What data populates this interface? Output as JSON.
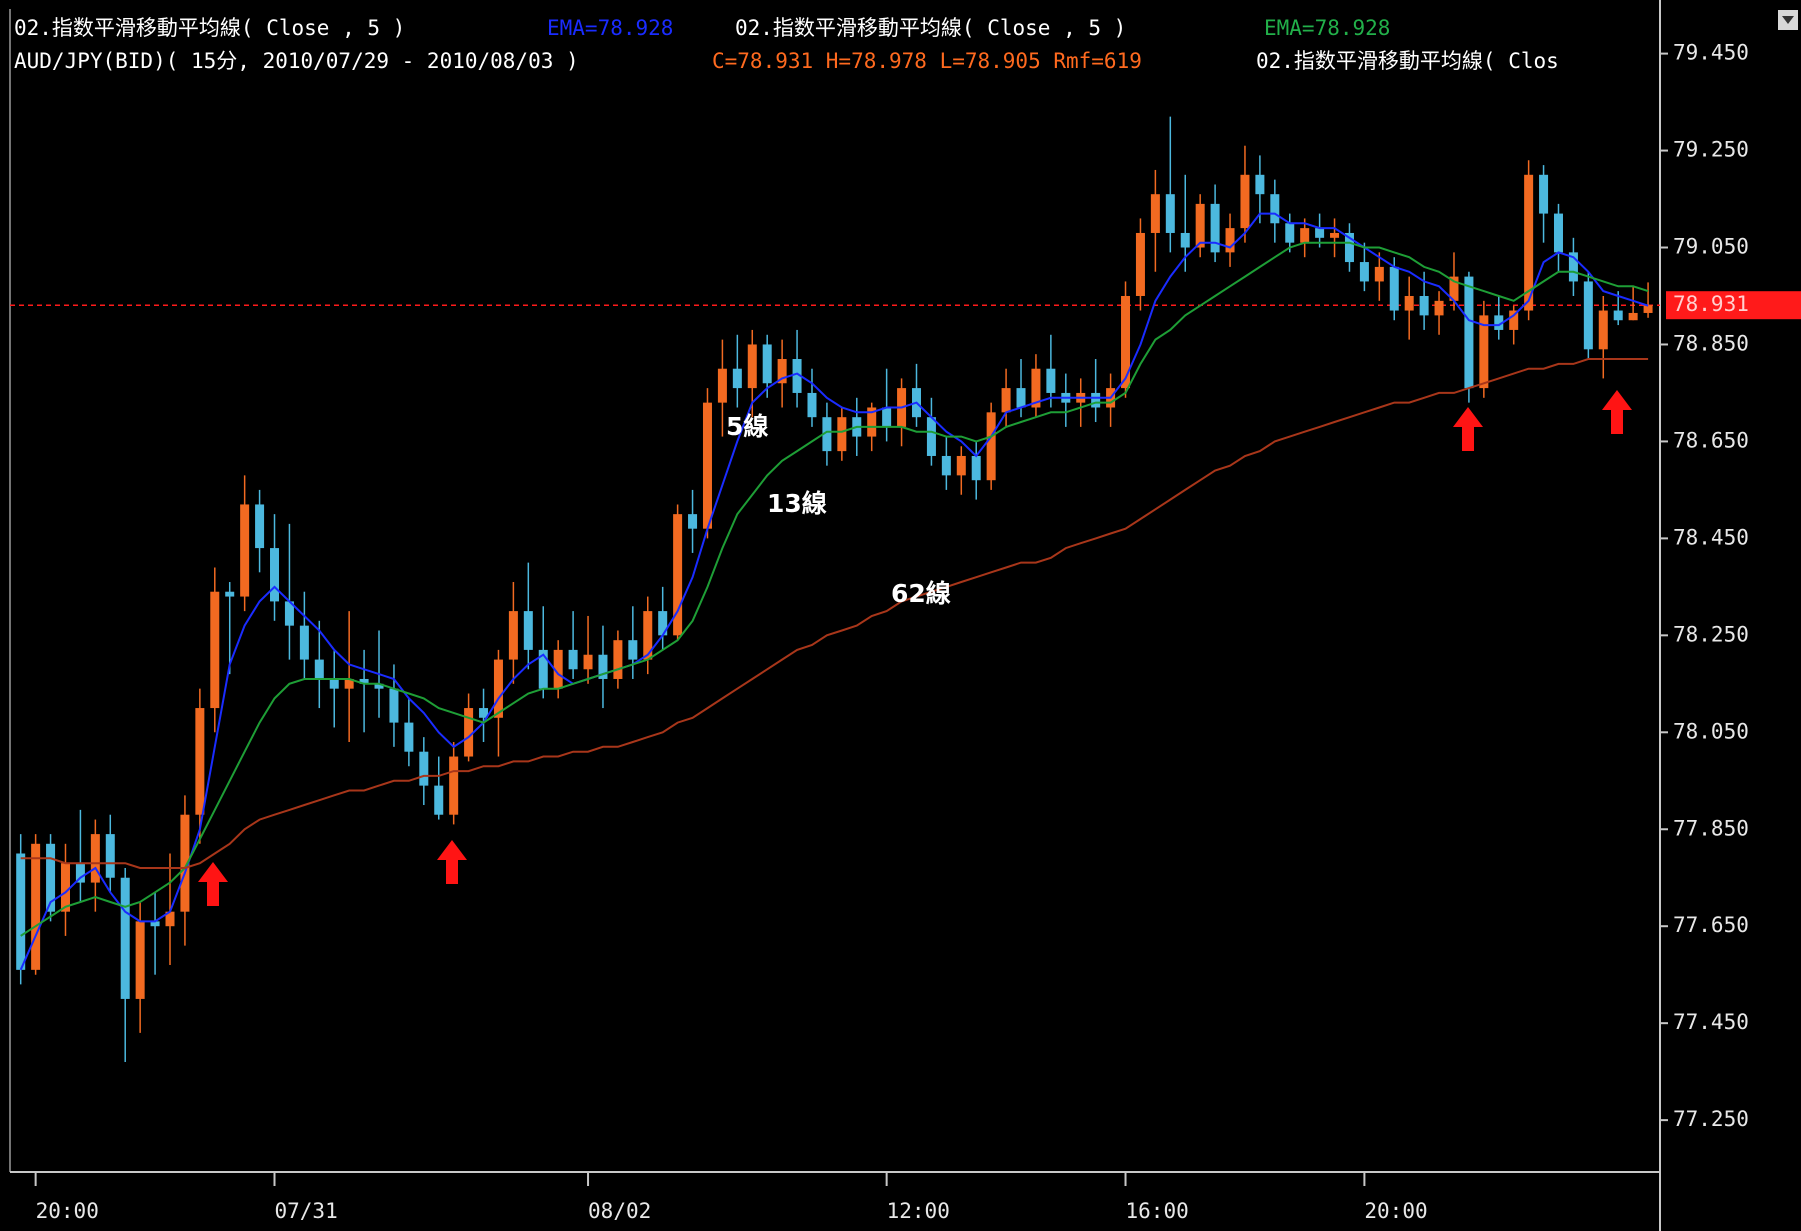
{
  "chart_data": {
    "type": "candlestick",
    "header": {
      "line1": [
        {
          "text": "02.指数平滑移動平均線( Close , 5 )",
          "color": "#ffffff"
        },
        {
          "text": "EMA=78.928",
          "color": "#1a2cff"
        },
        {
          "text": "02.指数平滑移動平均線( Close , 5 )",
          "color": "#ffffff"
        },
        {
          "text": "EMA=78.928",
          "color": "#22b04a"
        }
      ],
      "line2": [
        {
          "text": "AUD/JPY(BID)( 15分, 2010/07/29 - 2010/08/03 )",
          "color": "#ffffff"
        },
        {
          "text": "C=78.931 H=78.978 L=78.905 Rmf=619",
          "color": "#ff6a1f"
        },
        {
          "text": "02.指数平滑移動平均線( Clos",
          "color": "#ffffff"
        }
      ]
    },
    "categories": [
      null,
      "20:00",
      null,
      null,
      null,
      null,
      null,
      null,
      null,
      null,
      null,
      null,
      null,
      null,
      null,
      null,
      null,
      "07/31",
      null,
      null,
      null,
      null,
      null,
      null,
      null,
      null,
      null,
      null,
      null,
      null,
      null,
      null,
      null,
      null,
      null,
      null,
      null,
      null,
      "08/02",
      null,
      null,
      null,
      null,
      null,
      null,
      null,
      null,
      null,
      null,
      null,
      null,
      null,
      null,
      null,
      null,
      null,
      null,
      null,
      "12:00",
      null,
      null,
      null,
      null,
      null,
      null,
      null,
      null,
      null,
      null,
      null,
      null,
      null,
      null,
      null,
      "16:00",
      null,
      null,
      null,
      null,
      null,
      null,
      null,
      null,
      null,
      null,
      null,
      null,
      null,
      null,
      null,
      "20:00",
      null,
      null,
      null,
      null,
      null,
      null,
      null,
      null,
      null,
      null,
      null,
      null,
      null,
      null,
      null,
      null,
      null,
      null,
      null
    ],
    "open": [
      77.8,
      77.56,
      77.82,
      77.68,
      77.78,
      77.74,
      77.84,
      77.75,
      77.5,
      77.66,
      77.65,
      77.68,
      77.88,
      78.1,
      78.34,
      78.33,
      78.52,
      78.43,
      78.32,
      78.27,
      78.2,
      78.16,
      78.14,
      78.16,
      78.15,
      78.14,
      78.07,
      78.01,
      77.94,
      77.88,
      78.0,
      78.1,
      78.08,
      78.2,
      78.3,
      78.22,
      78.14,
      78.22,
      78.18,
      78.21,
      78.16,
      78.24,
      78.2,
      78.3,
      78.25,
      78.5,
      78.47,
      78.73,
      78.8,
      78.76,
      78.85,
      78.77,
      78.82,
      78.75,
      78.7,
      78.63,
      78.7,
      78.66,
      78.72,
      78.68,
      78.76,
      78.7,
      78.62,
      78.58,
      78.62,
      78.57,
      78.71,
      78.76,
      78.72,
      78.8,
      78.75,
      78.73,
      78.75,
      78.72,
      78.76,
      78.95,
      79.08,
      79.16,
      79.08,
      79.05,
      79.14,
      79.04,
      79.09,
      79.2,
      79.16,
      79.1,
      79.06,
      79.09,
      79.07,
      79.08,
      79.02,
      78.98,
      79.01,
      78.92,
      78.95,
      78.91,
      78.94,
      78.99,
      78.76,
      78.91,
      78.88,
      78.92,
      79.2,
      79.12,
      79.04,
      78.98,
      78.84,
      78.92,
      78.9,
      78.915
    ],
    "high": [
      77.84,
      77.84,
      77.84,
      77.82,
      77.89,
      77.87,
      77.88,
      77.77,
      77.7,
      77.72,
      77.8,
      77.92,
      78.14,
      78.39,
      78.36,
      78.58,
      78.55,
      78.5,
      78.48,
      78.34,
      78.28,
      78.22,
      78.3,
      78.22,
      78.26,
      78.19,
      78.12,
      78.04,
      78.0,
      78.03,
      78.13,
      78.14,
      78.22,
      78.36,
      78.4,
      78.31,
      78.24,
      78.3,
      78.29,
      78.27,
      78.26,
      78.31,
      78.33,
      78.35,
      78.52,
      78.55,
      78.76,
      78.86,
      78.87,
      78.88,
      78.87,
      78.86,
      78.88,
      78.8,
      78.73,
      78.72,
      78.74,
      78.73,
      78.8,
      78.78,
      78.81,
      78.74,
      78.66,
      78.64,
      78.65,
      78.73,
      78.8,
      78.82,
      78.83,
      78.87,
      78.79,
      78.78,
      78.82,
      78.79,
      78.98,
      79.11,
      79.21,
      79.32,
      79.2,
      79.16,
      79.18,
      79.12,
      79.26,
      79.24,
      79.19,
      79.12,
      79.11,
      79.12,
      79.11,
      79.1,
      79.06,
      79.04,
      79.03,
      78.99,
      79.0,
      78.96,
      79.04,
      79.0,
      78.94,
      78.95,
      78.93,
      79.23,
      79.22,
      79.14,
      79.07,
      79.0,
      78.95,
      78.96,
      78.97,
      78.978
    ],
    "low": [
      77.53,
      77.55,
      77.66,
      77.63,
      77.7,
      77.68,
      77.72,
      77.37,
      77.43,
      77.55,
      77.57,
      77.61,
      77.82,
      78.05,
      78.17,
      78.3,
      78.38,
      78.28,
      78.2,
      78.16,
      78.1,
      78.06,
      78.03,
      78.05,
      78.08,
      78.02,
      77.98,
      77.9,
      77.87,
      77.86,
      77.99,
      78.03,
      78.0,
      78.15,
      78.18,
      78.12,
      78.12,
      78.16,
      78.15,
      78.1,
      78.14,
      78.16,
      78.17,
      78.22,
      78.24,
      78.42,
      78.45,
      78.66,
      78.72,
      78.7,
      78.74,
      78.72,
      78.72,
      78.68,
      78.6,
      78.61,
      78.62,
      78.63,
      78.65,
      78.64,
      78.68,
      78.6,
      78.55,
      78.54,
      78.53,
      78.55,
      78.68,
      78.7,
      78.7,
      78.72,
      78.68,
      78.68,
      78.69,
      78.68,
      78.74,
      78.92,
      79.0,
      79.04,
      79.0,
      79.03,
      79.02,
      79.01,
      79.06,
      79.1,
      79.06,
      79.04,
      79.03,
      79.05,
      79.03,
      79.0,
      78.96,
      78.94,
      78.9,
      78.86,
      78.88,
      78.87,
      78.92,
      78.73,
      78.74,
      78.86,
      78.85,
      78.9,
      79.06,
      79.0,
      78.95,
      78.82,
      78.78,
      78.89,
      78.9,
      78.905
    ],
    "close": [
      77.56,
      77.82,
      77.68,
      77.78,
      77.74,
      77.84,
      77.75,
      77.5,
      77.66,
      77.65,
      77.68,
      77.88,
      78.1,
      78.34,
      78.33,
      78.52,
      78.43,
      78.32,
      78.27,
      78.2,
      78.16,
      78.14,
      78.16,
      78.15,
      78.14,
      78.07,
      78.01,
      77.94,
      77.88,
      78.0,
      78.1,
      78.08,
      78.2,
      78.3,
      78.22,
      78.14,
      78.22,
      78.18,
      78.21,
      78.16,
      78.24,
      78.2,
      78.3,
      78.25,
      78.5,
      78.47,
      78.73,
      78.8,
      78.76,
      78.85,
      78.77,
      78.82,
      78.75,
      78.7,
      78.63,
      78.7,
      78.66,
      78.72,
      78.68,
      78.76,
      78.7,
      78.62,
      78.58,
      78.62,
      78.57,
      78.71,
      78.76,
      78.72,
      78.8,
      78.75,
      78.73,
      78.75,
      78.72,
      78.76,
      78.95,
      79.08,
      79.16,
      79.08,
      79.05,
      79.14,
      79.04,
      79.09,
      79.2,
      79.16,
      79.1,
      79.06,
      79.09,
      79.07,
      79.08,
      79.02,
      78.98,
      79.01,
      78.92,
      78.95,
      78.91,
      78.94,
      78.99,
      78.76,
      78.91,
      78.88,
      78.92,
      79.2,
      79.12,
      79.04,
      78.98,
      78.84,
      78.92,
      78.9,
      78.915,
      78.931
    ],
    "up_color": "#f26a21",
    "down_color": "#4cb8de",
    "lines": [
      {
        "name": "5線",
        "color": "#1a2cff",
        "values": [
          77.56,
          77.63,
          77.7,
          77.72,
          77.75,
          77.77,
          77.72,
          77.68,
          77.66,
          77.66,
          77.68,
          77.76,
          77.85,
          78.02,
          78.19,
          78.27,
          78.32,
          78.35,
          78.32,
          78.29,
          78.26,
          78.22,
          78.19,
          78.18,
          78.17,
          78.16,
          78.12,
          78.09,
          78.05,
          78.02,
          78.04,
          78.07,
          78.12,
          78.16,
          78.19,
          78.21,
          78.17,
          78.15,
          78.16,
          78.17,
          78.18,
          78.19,
          78.21,
          78.25,
          78.3,
          78.37,
          78.47,
          78.56,
          78.65,
          78.73,
          78.76,
          78.78,
          78.79,
          78.77,
          78.74,
          78.72,
          78.71,
          78.71,
          78.72,
          78.72,
          78.73,
          78.7,
          78.67,
          78.65,
          78.62,
          78.66,
          78.71,
          78.72,
          78.73,
          78.74,
          78.74,
          78.74,
          78.74,
          78.74,
          78.78,
          78.85,
          78.94,
          78.99,
          79.03,
          79.06,
          79.06,
          79.05,
          79.08,
          79.12,
          79.12,
          79.1,
          79.1,
          79.09,
          79.09,
          79.07,
          79.05,
          79.03,
          79.01,
          79.0,
          78.98,
          78.97,
          78.94,
          78.9,
          78.89,
          78.89,
          78.91,
          78.94,
          79.02,
          79.04,
          79.03,
          79.0,
          78.96,
          78.95,
          78.94,
          78.93
        ]
      },
      {
        "name": "13線",
        "color": "#1e9e36",
        "values": [
          77.63,
          77.65,
          77.67,
          77.69,
          77.7,
          77.71,
          77.7,
          77.69,
          77.7,
          77.72,
          77.74,
          77.77,
          77.83,
          77.89,
          77.95,
          78.01,
          78.07,
          78.12,
          78.15,
          78.16,
          78.16,
          78.16,
          78.16,
          78.15,
          78.15,
          78.14,
          78.13,
          78.12,
          78.1,
          78.09,
          78.08,
          78.07,
          78.09,
          78.11,
          78.13,
          78.14,
          78.14,
          78.15,
          78.16,
          78.17,
          78.18,
          78.19,
          78.2,
          78.22,
          78.24,
          78.28,
          78.35,
          78.43,
          78.5,
          78.54,
          78.58,
          78.61,
          78.63,
          78.65,
          78.67,
          78.67,
          78.68,
          78.68,
          78.68,
          78.68,
          78.67,
          78.67,
          78.66,
          78.66,
          78.65,
          78.66,
          78.68,
          78.69,
          78.7,
          78.71,
          78.71,
          78.72,
          78.73,
          78.73,
          78.75,
          78.81,
          78.86,
          78.88,
          78.91,
          78.93,
          78.95,
          78.97,
          78.99,
          79.01,
          79.03,
          79.05,
          79.06,
          79.06,
          79.06,
          79.06,
          79.05,
          79.05,
          79.04,
          79.03,
          79.01,
          79.0,
          78.98,
          78.97,
          78.96,
          78.95,
          78.94,
          78.96,
          78.98,
          79.0,
          79.0,
          78.99,
          78.98,
          78.97,
          78.97,
          78.96
        ]
      },
      {
        "name": "62線",
        "color": "#a8361a",
        "values": [
          77.79,
          77.79,
          77.79,
          77.78,
          77.78,
          77.78,
          77.78,
          77.78,
          77.77,
          77.77,
          77.77,
          77.77,
          77.78,
          77.8,
          77.82,
          77.85,
          77.87,
          77.88,
          77.89,
          77.9,
          77.91,
          77.92,
          77.93,
          77.93,
          77.94,
          77.95,
          77.95,
          77.96,
          77.96,
          77.97,
          77.97,
          77.98,
          77.98,
          77.99,
          77.99,
          78.0,
          78.0,
          78.01,
          78.01,
          78.02,
          78.02,
          78.03,
          78.04,
          78.05,
          78.07,
          78.08,
          78.1,
          78.12,
          78.14,
          78.16,
          78.18,
          78.2,
          78.22,
          78.23,
          78.25,
          78.26,
          78.27,
          78.29,
          78.3,
          78.32,
          78.33,
          78.34,
          78.35,
          78.36,
          78.37,
          78.38,
          78.39,
          78.4,
          78.4,
          78.41,
          78.43,
          78.44,
          78.45,
          78.46,
          78.47,
          78.49,
          78.51,
          78.53,
          78.55,
          78.57,
          78.59,
          78.6,
          78.62,
          78.63,
          78.65,
          78.66,
          78.67,
          78.68,
          78.69,
          78.7,
          78.71,
          78.72,
          78.73,
          78.73,
          78.74,
          78.75,
          78.75,
          78.76,
          78.77,
          78.78,
          78.79,
          78.8,
          78.8,
          78.81,
          78.81,
          78.82,
          78.82,
          78.82,
          78.82,
          78.82
        ]
      }
    ],
    "last_price": 78.931,
    "last_price_color": "#ff1a1a",
    "ylim": [
      77.143,
      79.542
    ],
    "yticks": [
      {
        "value": 77.25,
        "label": "77.250"
      },
      {
        "value": 77.45,
        "label": "77.450"
      },
      {
        "value": 77.65,
        "label": "77.650"
      },
      {
        "value": 77.85,
        "label": "77.850"
      },
      {
        "value": 78.05,
        "label": "78.050"
      },
      {
        "value": 78.25,
        "label": "78.250"
      },
      {
        "value": 78.45,
        "label": "78.450"
      },
      {
        "value": 78.65,
        "label": "78.650"
      },
      {
        "value": 78.85,
        "label": "78.850"
      },
      {
        "value": 79.05,
        "label": "79.050"
      },
      {
        "value": 79.25,
        "label": "79.250"
      },
      {
        "value": 79.45,
        "label": "79.450"
      }
    ]
  }
}
